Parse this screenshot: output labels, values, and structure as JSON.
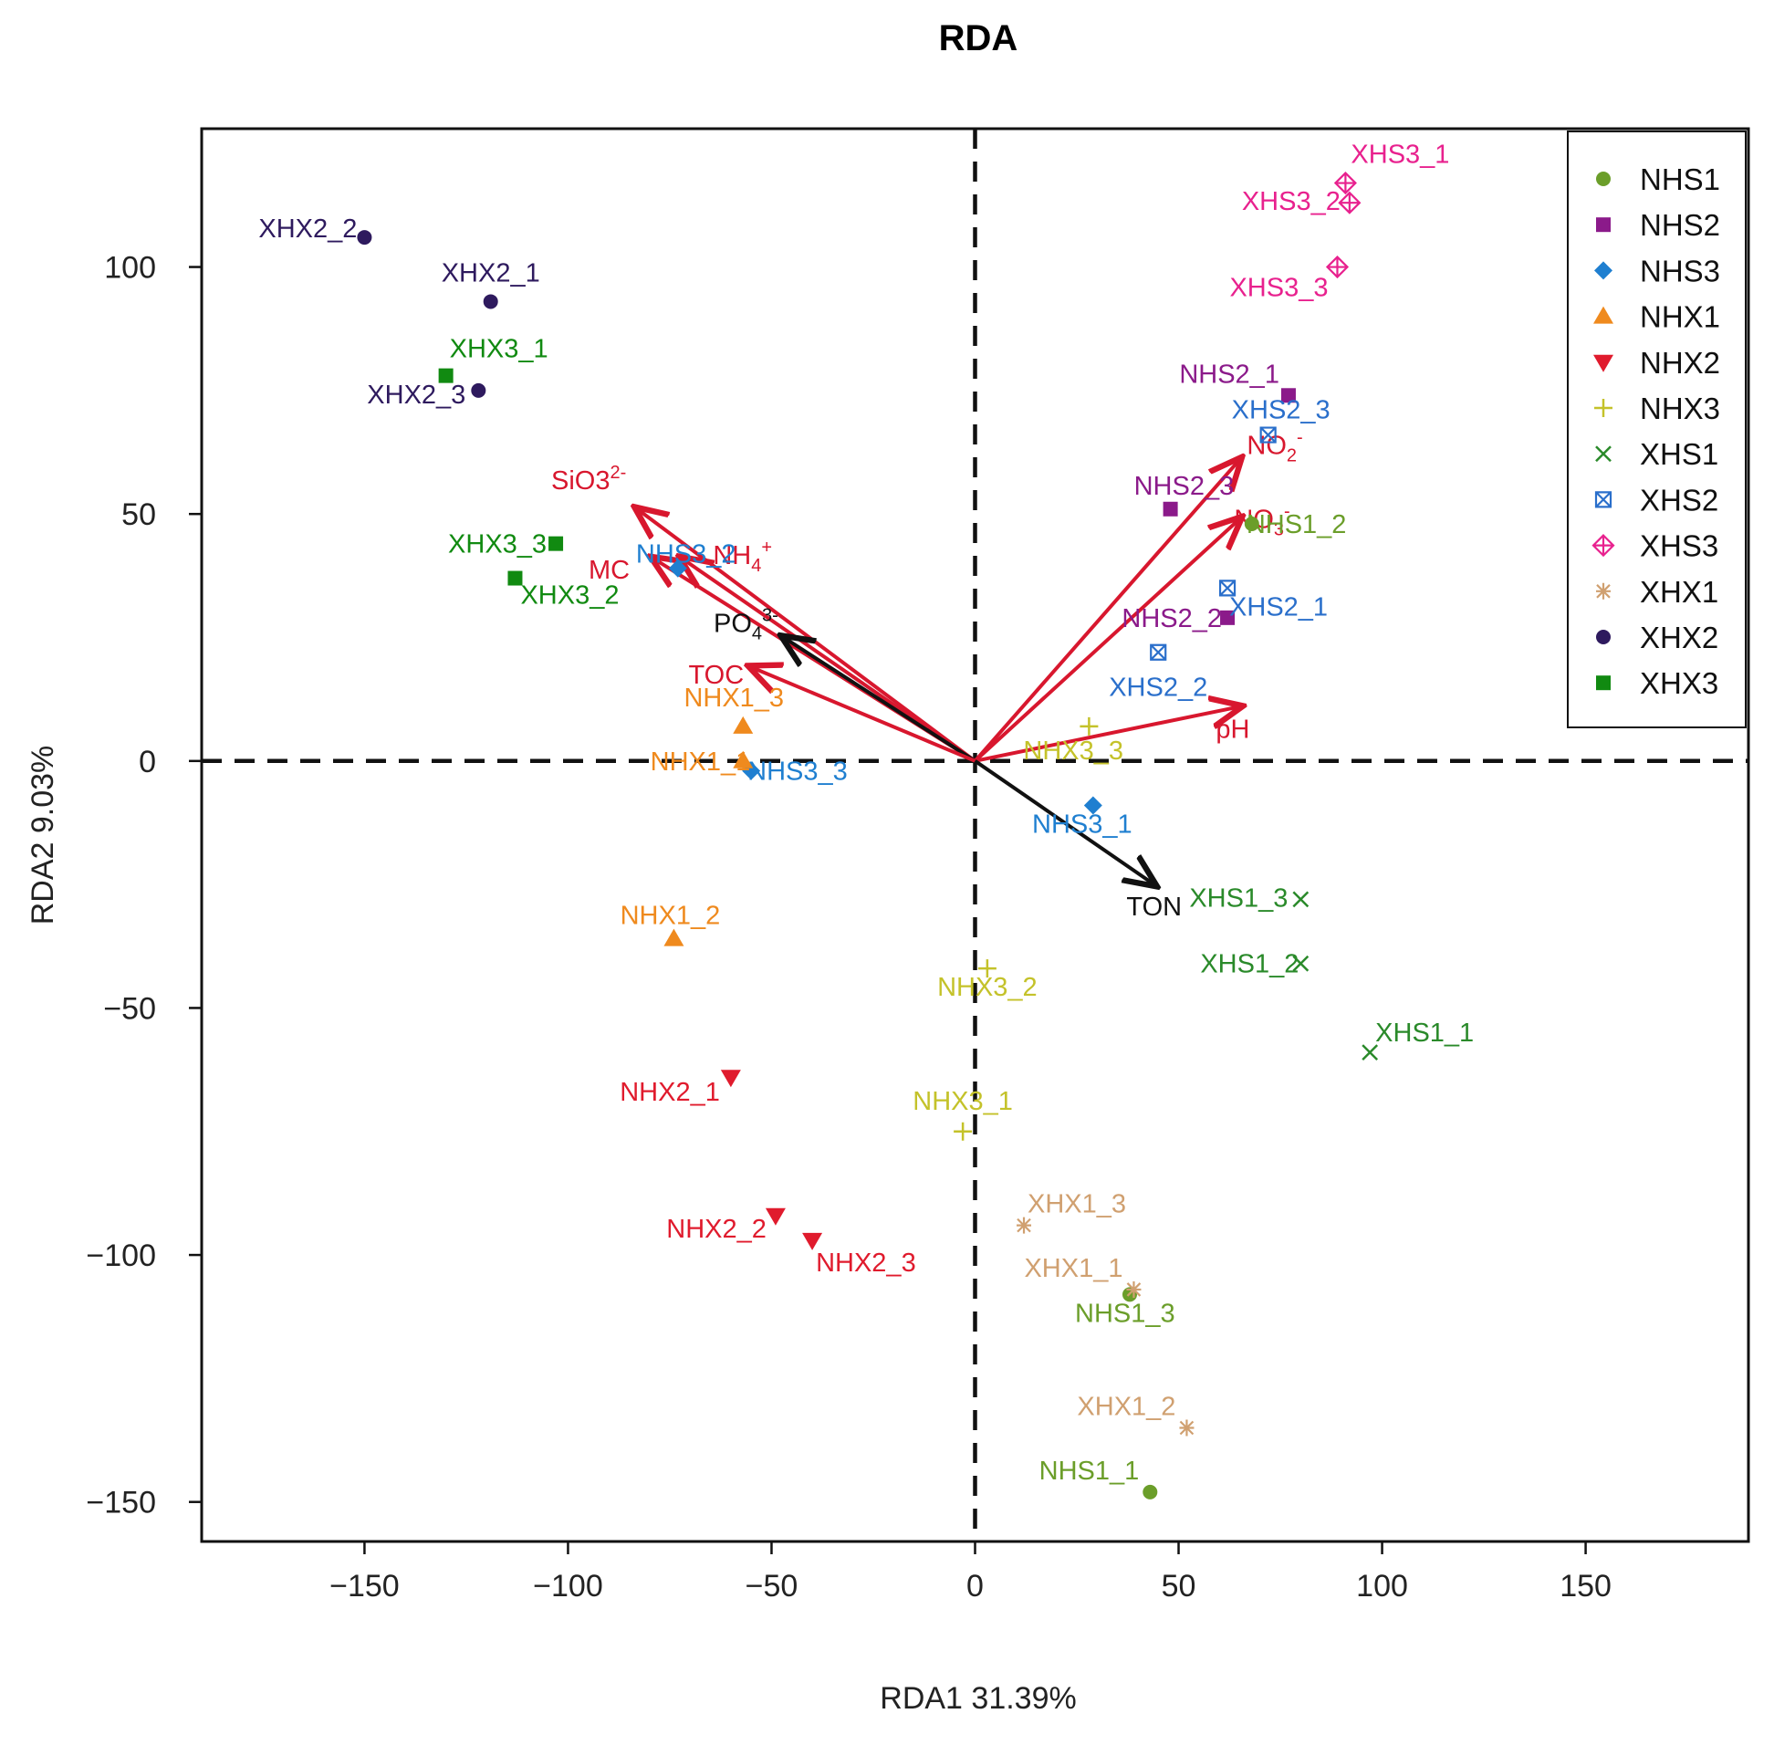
{
  "chart_data": {
    "type": "scatter",
    "subtype": "RDA biplot",
    "title": "RDA",
    "xlabel": "RDA1  31.39%",
    "ylabel": "RDA2  9.03%",
    "xlim": [
      -190,
      190
    ],
    "ylim": [
      -158,
      128
    ],
    "xticks": [
      -150,
      -100,
      -50,
      0,
      50,
      100,
      150
    ],
    "yticks": [
      -150,
      -100,
      -50,
      0,
      50,
      100
    ],
    "legend_position": "top-right",
    "groups": [
      {
        "name": "NHS1",
        "color": "#6b9e2a",
        "marker": "circle",
        "points": [
          {
            "label": "NHS1_1",
            "x": 43,
            "y": -148
          },
          {
            "label": "NHS1_2",
            "x": 68,
            "y": 48
          },
          {
            "label": "NHS1_3",
            "x": 38,
            "y": -108
          }
        ]
      },
      {
        "name": "NHS2",
        "color": "#8b1a8a",
        "marker": "square",
        "points": [
          {
            "label": "NHS2_1",
            "x": 77,
            "y": 74
          },
          {
            "label": "NHS2_2",
            "x": 62,
            "y": 29
          },
          {
            "label": "NHS2_3",
            "x": 48,
            "y": 51
          }
        ]
      },
      {
        "name": "NHS3",
        "color": "#1f7fd0",
        "marker": "diamond",
        "points": [
          {
            "label": "NHS3_1",
            "x": 29,
            "y": -9
          },
          {
            "label": "NHS3_2",
            "x": -73,
            "y": 39
          },
          {
            "label": "NHS3_3",
            "x": -55,
            "y": -2
          }
        ]
      },
      {
        "name": "NHX1",
        "color": "#ef8a1e",
        "marker": "triangle-up",
        "points": [
          {
            "label": "NHX1_1",
            "x": -57,
            "y": 0
          },
          {
            "label": "NHX1_2",
            "x": -74,
            "y": -36
          },
          {
            "label": "NHX1_3",
            "x": -57,
            "y": 7
          }
        ]
      },
      {
        "name": "NHX2",
        "color": "#e01b2d",
        "marker": "triangle-down",
        "points": [
          {
            "label": "NHX2_1",
            "x": -60,
            "y": -64
          },
          {
            "label": "NHX2_2",
            "x": -49,
            "y": -92
          },
          {
            "label": "NHX2_3",
            "x": -40,
            "y": -97
          }
        ]
      },
      {
        "name": "NHX3",
        "color": "#c4c22a",
        "marker": "plus",
        "points": [
          {
            "label": "NHX3_1",
            "x": -3,
            "y": -75
          },
          {
            "label": "NHX3_2",
            "x": 3,
            "y": -42
          },
          {
            "label": "NHX3_3",
            "x": 28,
            "y": 7
          }
        ]
      },
      {
        "name": "XHS1",
        "color": "#2a8a2a",
        "marker": "x",
        "points": [
          {
            "label": "XHS1_1",
            "x": 97,
            "y": -59
          },
          {
            "label": "XHS1_2",
            "x": 80,
            "y": -41
          },
          {
            "label": "XHS1_3",
            "x": 80,
            "y": -28
          }
        ]
      },
      {
        "name": "XHS2",
        "color": "#2a6fcb",
        "marker": "square-x",
        "points": [
          {
            "label": "XHS2_1",
            "x": 62,
            "y": 35
          },
          {
            "label": "XHS2_2",
            "x": 45,
            "y": 22
          },
          {
            "label": "XHS2_3",
            "x": 72,
            "y": 66
          }
        ]
      },
      {
        "name": "XHS3",
        "color": "#e8218e",
        "marker": "diamond-plus",
        "points": [
          {
            "label": "XHS3_1",
            "x": 91,
            "y": 117
          },
          {
            "label": "XHS3_2",
            "x": 92,
            "y": 113
          },
          {
            "label": "XHS3_3",
            "x": 89,
            "y": 100
          }
        ]
      },
      {
        "name": "XHX1",
        "color": "#d0a070",
        "marker": "asterisk",
        "points": [
          {
            "label": "XHX1_1",
            "x": 39,
            "y": -107
          },
          {
            "label": "XHX1_2",
            "x": 52,
            "y": -135
          },
          {
            "label": "XHX1_3",
            "x": 12,
            "y": -94
          }
        ]
      },
      {
        "name": "XHX2",
        "color": "#2e1a5e",
        "marker": "circle",
        "points": [
          {
            "label": "XHX2_1",
            "x": -119,
            "y": 93
          },
          {
            "label": "XHX2_2",
            "x": -150,
            "y": 106
          },
          {
            "label": "XHX2_3",
            "x": -122,
            "y": 75
          }
        ]
      },
      {
        "name": "XHX3",
        "color": "#118a11",
        "marker": "square",
        "points": [
          {
            "label": "XHX3_1",
            "x": -130,
            "y": 78
          },
          {
            "label": "XHX3_2",
            "x": -113,
            "y": 37
          },
          {
            "label": "XHX3_3",
            "x": -103,
            "y": 44
          }
        ]
      }
    ],
    "vectors": [
      {
        "name": "SiO3",
        "sup": "2-",
        "x": -83,
        "y": 51,
        "color": "#d8172e"
      },
      {
        "name": "NH",
        "sub": "4",
        "sup": "+",
        "x": -72,
        "y": 41,
        "color": "#d8172e"
      },
      {
        "name": "MC",
        "x": -79,
        "y": 41,
        "color": "#d8172e"
      },
      {
        "name": "PO",
        "sub": "4",
        "sup": "3-",
        "x": -47,
        "y": 25,
        "color": "#111111"
      },
      {
        "name": "TOC",
        "x": -55,
        "y": 19,
        "color": "#d8172e"
      },
      {
        "name": "NO",
        "sub": "2",
        "sup": "-",
        "x": 65,
        "y": 61,
        "color": "#d8172e"
      },
      {
        "name": "NO",
        "sub": "3",
        "sup": "-",
        "x": 65,
        "y": 49,
        "color": "#d8172e"
      },
      {
        "name": "pH",
        "x": 65,
        "y": 11,
        "color": "#d8172e"
      },
      {
        "name": "TON",
        "x": 44,
        "y": -25,
        "color": "#111111"
      }
    ]
  }
}
